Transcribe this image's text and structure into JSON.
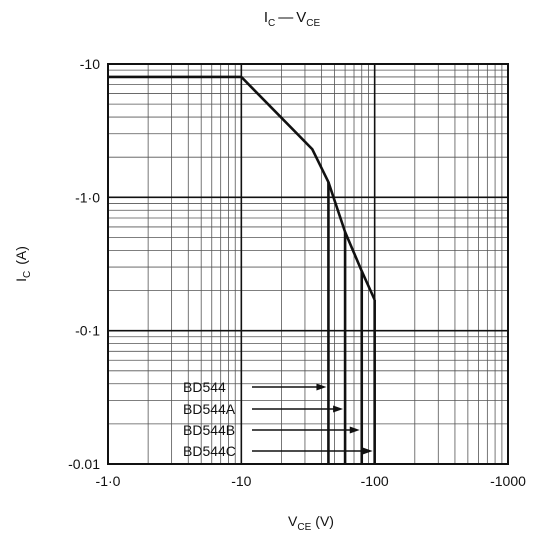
{
  "chart_data": {
    "type": "line",
    "title": {
      "main": "I",
      "sub1": "C",
      "dash": "—",
      "main2": "V",
      "sub2": "CE"
    },
    "xlabel": {
      "main": "V",
      "sub": "CE",
      "unit": "(V)"
    },
    "ylabel": {
      "main": "I",
      "sub": "C",
      "unit": "(A)"
    },
    "x_scale": "log",
    "y_scale": "log",
    "xlim": [
      -1,
      -1000
    ],
    "ylim": [
      -0.01,
      -10
    ],
    "x_ticks": [
      {
        "value": -1,
        "label": "-1·0"
      },
      {
        "value": -10,
        "label": "-10"
      },
      {
        "value": -100,
        "label": "-100"
      },
      {
        "value": -1000,
        "label": "-1000"
      }
    ],
    "y_ticks": [
      {
        "value": -0.01,
        "label": "-0.01"
      },
      {
        "value": -0.1,
        "label": "-0·1"
      },
      {
        "value": -1,
        "label": "-1·0"
      },
      {
        "value": -10,
        "label": "-10"
      }
    ],
    "grid": true,
    "envelope": [
      {
        "x": -1,
        "y": -8
      },
      {
        "x": -10,
        "y": -8
      },
      {
        "x": -34,
        "y": -2.3
      },
      {
        "x": -45,
        "y": -1.3
      },
      {
        "x": -60,
        "y": -0.55
      },
      {
        "x": -80,
        "y": -0.28
      },
      {
        "x": -100,
        "y": -0.17
      }
    ],
    "series": [
      {
        "name": "BD544",
        "vmax": -45,
        "icut": -1.3
      },
      {
        "name": "BD544A",
        "vmax": -60,
        "icut": -0.55
      },
      {
        "name": "BD544B",
        "vmax": -80,
        "icut": -0.28
      },
      {
        "name": "BD544C",
        "vmax": -100,
        "icut": -0.17
      }
    ]
  }
}
